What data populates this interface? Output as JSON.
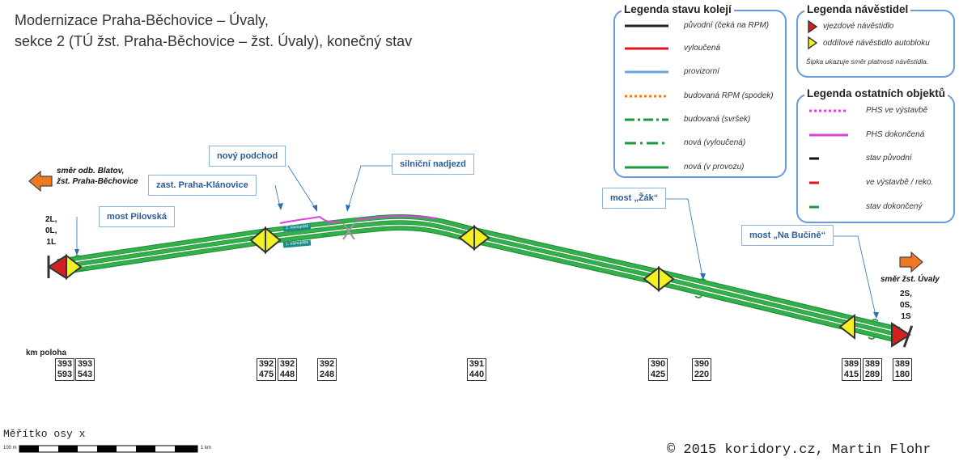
{
  "header": {
    "title_line1": "Modernizace Praha-Běchovice – Úvaly,",
    "title_line2": "sekce 2 (TÚ žst. Praha-Běchovice – žst. Úvaly), konečný stav"
  },
  "legend_tracks": {
    "title": "Legenda stavu kolejí",
    "items": [
      {
        "label": "původní (čeká na RPM)",
        "color": "#222222",
        "style": "solid"
      },
      {
        "label": "vyloučená",
        "color": "#e0141e",
        "style": "solid"
      },
      {
        "label": "provizorní",
        "color": "#6fa3e0",
        "style": "solid"
      },
      {
        "label": "budovaná RPM (spodek)",
        "color": "#f07820",
        "style": "dotted"
      },
      {
        "label": "budovaná (svršek)",
        "color": "#1e9a3c",
        "style": "dashed"
      },
      {
        "label": "nová (vyloučená)",
        "color": "#1e9a3c",
        "style": "dashdot"
      },
      {
        "label": "nová (v provozu)",
        "color": "#1e9a3c",
        "style": "solid"
      }
    ]
  },
  "legend_signals": {
    "title": "Legenda návěstidel",
    "items": [
      {
        "label": "vjezdové návěstidlo",
        "color": "#d42020"
      },
      {
        "label": "oddílové návěstidlo autobloku",
        "color": "#f2f222"
      }
    ],
    "note": "Šipka ukazuje směr platnosti návěstidla."
  },
  "legend_objects": {
    "title": "Legenda ostatních objektů",
    "items": [
      {
        "label": "PHS ve výstavbě",
        "color": "#e040e0",
        "style": "dotted"
      },
      {
        "label": "PHS dokončená",
        "color": "#e040e0",
        "style": "solid"
      },
      {
        "label": "stav původní",
        "color": "#111111",
        "style": "short"
      },
      {
        "label": "ve výstavbě / reko.",
        "color": "#e0141e",
        "style": "short"
      },
      {
        "label": "stav dokončený",
        "color": "#1e9a3c",
        "style": "short"
      }
    ]
  },
  "callouts": {
    "novy_podchod": "nový podchod",
    "silnicni_nadjezd": "silniční nadjezd",
    "zast_klanovice": "zast. Praha-Klánovice",
    "most_pilovska": "most Pilovská",
    "most_zak": "most „Žák“",
    "most_na_bucine": "most „Na Bučině“"
  },
  "directions": {
    "left_line1": "směr odb. Blatov,",
    "left_line2": "žst. Praha-Běchovice",
    "right": "směr žst. Úvaly"
  },
  "track_labels": {
    "left": [
      "2L,",
      "0L,",
      "1L"
    ],
    "right": [
      "2S,",
      "0S,",
      "1S"
    ]
  },
  "platforms": {
    "upper": "2. nástupiště",
    "lower": "1. nástupiště"
  },
  "km": {
    "title": "km poloha",
    "positions": [
      {
        "top": "393",
        "bottom": "593"
      },
      {
        "top": "393",
        "bottom": "543"
      },
      {
        "top": "392",
        "bottom": "475"
      },
      {
        "top": "392",
        "bottom": "448"
      },
      {
        "top": "392",
        "bottom": "248"
      },
      {
        "top": "391",
        "bottom": "440"
      },
      {
        "top": "390",
        "bottom": "425"
      },
      {
        "top": "390",
        "bottom": "220"
      },
      {
        "top": "389",
        "bottom": "415"
      },
      {
        "top": "389",
        "bottom": "289"
      },
      {
        "top": "389",
        "bottom": "180"
      }
    ]
  },
  "scale": {
    "title": "Měřítko osy x",
    "start": "100 m",
    "end": "1 km"
  },
  "copyright": "© 2015 koridory.cz, Martin Flohr"
}
